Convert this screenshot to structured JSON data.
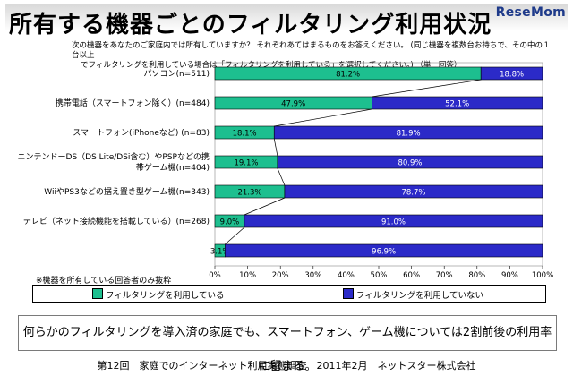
{
  "title": "所有する機器ごとのフィルタリング利用状況",
  "logo": "ReseMom",
  "question_lines": [
    "次の機器をあなたのご家庭内では所有していますか？ それぞれあてはまるものをお答えください。 (同じ機器を複数台お持ちで、その中の１台以上",
    "でフィルタリングを利用している場合は「フィルタリングを利用している」を選択してください。) （単一回答）"
  ],
  "note": "※機器を所有している回答者のみ抜粋",
  "colors": {
    "using": "#1dbf8f",
    "not_using": "#2b2ac8"
  },
  "chart_data": {
    "type": "bar",
    "orientation": "horizontal",
    "stacked": true,
    "categories": [
      [
        "パソコン(n=511)"
      ],
      [
        "携帯電話（スマートフォン除く）(n=484)"
      ],
      [
        "スマートフォン(iPhoneなど) (n=83)"
      ],
      [
        "ニンテンドーDS（DS Lite/DSi含む）やPSPなどの携",
        "帯ゲーム機(n=404)"
      ],
      [
        "WiiやPS3などの据え置き型ゲーム機(n=343)"
      ],
      [
        "テレビ（ネット接続機能を搭載している）(n=268)"
      ],
      [
        ""
      ]
    ],
    "series": [
      {
        "name": "フィルタリングを利用している",
        "values": [
          81.2,
          47.9,
          18.1,
          19.1,
          21.3,
          9.0,
          3.1
        ],
        "labels": [
          "81.2%",
          "47.9%",
          "18.1%",
          "19.1%",
          "21.3%",
          "9.0%",
          "3.1%"
        ]
      },
      {
        "name": "フィルタリングを利用していない",
        "values": [
          18.8,
          52.1,
          81.9,
          80.9,
          78.7,
          91.0,
          96.9
        ],
        "labels": [
          "18.8%",
          "52.1%",
          "81.9%",
          "80.9%",
          "78.7%",
          "91.0%",
          "96.9%"
        ]
      }
    ],
    "xlim": [
      0,
      100
    ],
    "x_ticks": [
      "0%",
      "10%",
      "20%",
      "30%",
      "40%",
      "50%",
      "60%",
      "70%",
      "80%",
      "90%",
      "100%"
    ],
    "series_lines": true,
    "legend": "bottom"
  },
  "summary": "何らかのフィルタリングを導入済の家庭でも、スマートフォン、ゲーム機については2割前後の利用率に留まる。",
  "footer": "第12回　家庭でのインターネット利用実態調査　2011年2月　ネットスター株式会社"
}
